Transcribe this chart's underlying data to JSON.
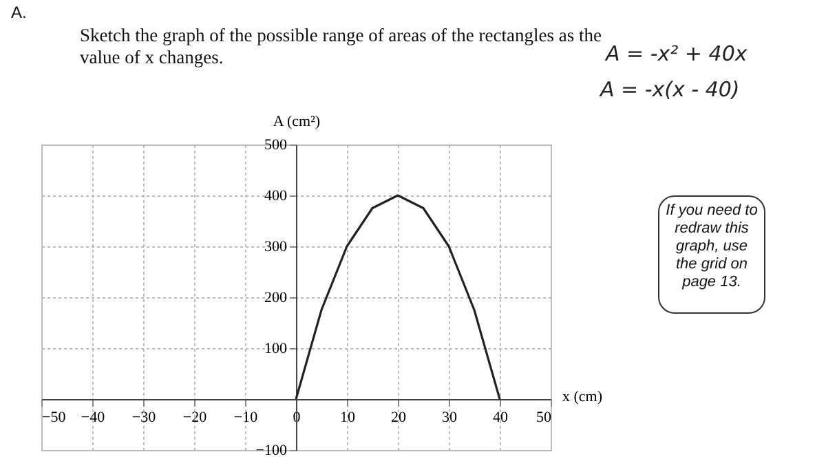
{
  "chart_data": {
    "type": "line",
    "title": "Sketch the graph of the possible range of areas of the rectangles as the value of x changes.",
    "xlabel": "x (cm)",
    "ylabel": "A (cm²)",
    "annotations": [
      "A.",
      "A = -x² + 40x",
      "A = -x(x - 40)",
      "If you need to redraw this graph, use the grid on page 13."
    ],
    "x": [
      0,
      5,
      10,
      15,
      20,
      25,
      30,
      35,
      40
    ],
    "series": [
      {
        "color": "#222222",
        "values": [
          0,
          175,
          300,
          375,
          400,
          375,
          300,
          175,
          0
        ]
      }
    ],
    "xlim": [
      -50,
      50
    ],
    "ylim": [
      -100,
      500
    ],
    "xticks": [
      -50,
      -40,
      -30,
      -20,
      -10,
      0,
      10,
      20,
      30,
      40,
      50
    ],
    "yticks": [
      -100,
      100,
      200,
      300,
      400,
      500
    ],
    "grid": true,
    "marker": "none",
    "line_style": "solid"
  }
}
